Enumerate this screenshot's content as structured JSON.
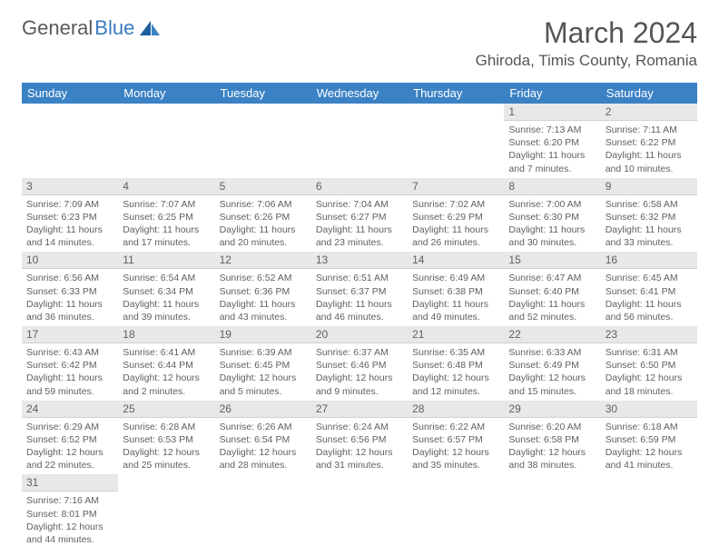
{
  "brand": {
    "part1": "General",
    "part2": "Blue"
  },
  "monthTitle": "March 2024",
  "location": "Ghiroda, Timis County, Romania",
  "dayHeaders": [
    "Sunday",
    "Monday",
    "Tuesday",
    "Wednesday",
    "Thursday",
    "Friday",
    "Saturday"
  ],
  "colors": {
    "headerBg": "#3b82c4",
    "headerText": "#ffffff",
    "dayNumBg": "#e8e8e8",
    "textGray": "#606060",
    "logoGray": "#5a5a5a",
    "logoBlue": "#3b7bbf"
  },
  "grid": [
    [
      null,
      null,
      null,
      null,
      null,
      {
        "n": "1",
        "sr": "7:13 AM",
        "ss": "6:20 PM",
        "dl": "11 hours and 7 minutes."
      },
      {
        "n": "2",
        "sr": "7:11 AM",
        "ss": "6:22 PM",
        "dl": "11 hours and 10 minutes."
      }
    ],
    [
      {
        "n": "3",
        "sr": "7:09 AM",
        "ss": "6:23 PM",
        "dl": "11 hours and 14 minutes."
      },
      {
        "n": "4",
        "sr": "7:07 AM",
        "ss": "6:25 PM",
        "dl": "11 hours and 17 minutes."
      },
      {
        "n": "5",
        "sr": "7:06 AM",
        "ss": "6:26 PM",
        "dl": "11 hours and 20 minutes."
      },
      {
        "n": "6",
        "sr": "7:04 AM",
        "ss": "6:27 PM",
        "dl": "11 hours and 23 minutes."
      },
      {
        "n": "7",
        "sr": "7:02 AM",
        "ss": "6:29 PM",
        "dl": "11 hours and 26 minutes."
      },
      {
        "n": "8",
        "sr": "7:00 AM",
        "ss": "6:30 PM",
        "dl": "11 hours and 30 minutes."
      },
      {
        "n": "9",
        "sr": "6:58 AM",
        "ss": "6:32 PM",
        "dl": "11 hours and 33 minutes."
      }
    ],
    [
      {
        "n": "10",
        "sr": "6:56 AM",
        "ss": "6:33 PM",
        "dl": "11 hours and 36 minutes."
      },
      {
        "n": "11",
        "sr": "6:54 AM",
        "ss": "6:34 PM",
        "dl": "11 hours and 39 minutes."
      },
      {
        "n": "12",
        "sr": "6:52 AM",
        "ss": "6:36 PM",
        "dl": "11 hours and 43 minutes."
      },
      {
        "n": "13",
        "sr": "6:51 AM",
        "ss": "6:37 PM",
        "dl": "11 hours and 46 minutes."
      },
      {
        "n": "14",
        "sr": "6:49 AM",
        "ss": "6:38 PM",
        "dl": "11 hours and 49 minutes."
      },
      {
        "n": "15",
        "sr": "6:47 AM",
        "ss": "6:40 PM",
        "dl": "11 hours and 52 minutes."
      },
      {
        "n": "16",
        "sr": "6:45 AM",
        "ss": "6:41 PM",
        "dl": "11 hours and 56 minutes."
      }
    ],
    [
      {
        "n": "17",
        "sr": "6:43 AM",
        "ss": "6:42 PM",
        "dl": "11 hours and 59 minutes."
      },
      {
        "n": "18",
        "sr": "6:41 AM",
        "ss": "6:44 PM",
        "dl": "12 hours and 2 minutes."
      },
      {
        "n": "19",
        "sr": "6:39 AM",
        "ss": "6:45 PM",
        "dl": "12 hours and 5 minutes."
      },
      {
        "n": "20",
        "sr": "6:37 AM",
        "ss": "6:46 PM",
        "dl": "12 hours and 9 minutes."
      },
      {
        "n": "21",
        "sr": "6:35 AM",
        "ss": "6:48 PM",
        "dl": "12 hours and 12 minutes."
      },
      {
        "n": "22",
        "sr": "6:33 AM",
        "ss": "6:49 PM",
        "dl": "12 hours and 15 minutes."
      },
      {
        "n": "23",
        "sr": "6:31 AM",
        "ss": "6:50 PM",
        "dl": "12 hours and 18 minutes."
      }
    ],
    [
      {
        "n": "24",
        "sr": "6:29 AM",
        "ss": "6:52 PM",
        "dl": "12 hours and 22 minutes."
      },
      {
        "n": "25",
        "sr": "6:28 AM",
        "ss": "6:53 PM",
        "dl": "12 hours and 25 minutes."
      },
      {
        "n": "26",
        "sr": "6:26 AM",
        "ss": "6:54 PM",
        "dl": "12 hours and 28 minutes."
      },
      {
        "n": "27",
        "sr": "6:24 AM",
        "ss": "6:56 PM",
        "dl": "12 hours and 31 minutes."
      },
      {
        "n": "28",
        "sr": "6:22 AM",
        "ss": "6:57 PM",
        "dl": "12 hours and 35 minutes."
      },
      {
        "n": "29",
        "sr": "6:20 AM",
        "ss": "6:58 PM",
        "dl": "12 hours and 38 minutes."
      },
      {
        "n": "30",
        "sr": "6:18 AM",
        "ss": "6:59 PM",
        "dl": "12 hours and 41 minutes."
      }
    ],
    [
      {
        "n": "31",
        "sr": "7:16 AM",
        "ss": "8:01 PM",
        "dl": "12 hours and 44 minutes."
      },
      null,
      null,
      null,
      null,
      null,
      null
    ]
  ]
}
